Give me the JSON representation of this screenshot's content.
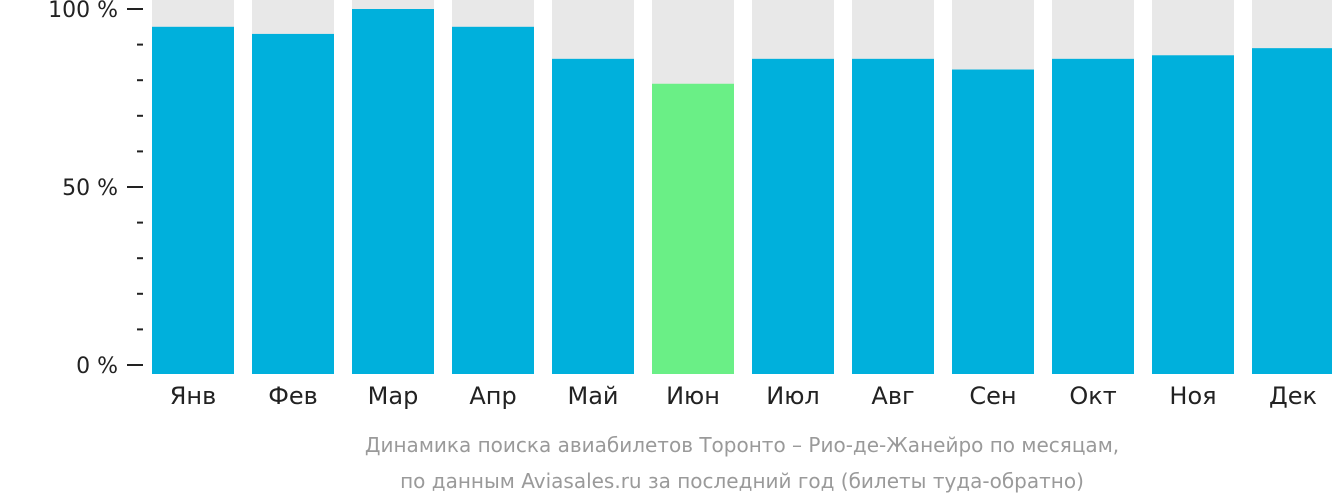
{
  "chart_data": {
    "type": "bar",
    "categories": [
      "Янв",
      "Фев",
      "Мар",
      "Апр",
      "Май",
      "Июн",
      "Июл",
      "Авг",
      "Сен",
      "Окт",
      "Ноя",
      "Дек"
    ],
    "values": [
      95,
      93,
      100,
      95,
      86,
      79,
      86,
      86,
      83,
      86,
      87,
      89
    ],
    "ylim": [
      0,
      100
    ],
    "y_ticks": [
      "0 %",
      "50 %",
      "100 %"
    ],
    "highlight_category": "Июн",
    "colors": {
      "bar": "#00b0dc",
      "highlight": "#6aef86",
      "track": "#e8e8e8"
    },
    "caption": [
      "Динамика поиска авиабилетов Торонто – Рио-де-Жанейро по месяцам,",
      "по данным Aviasales.ru за последний год (билеты туда-обратно)"
    ]
  }
}
